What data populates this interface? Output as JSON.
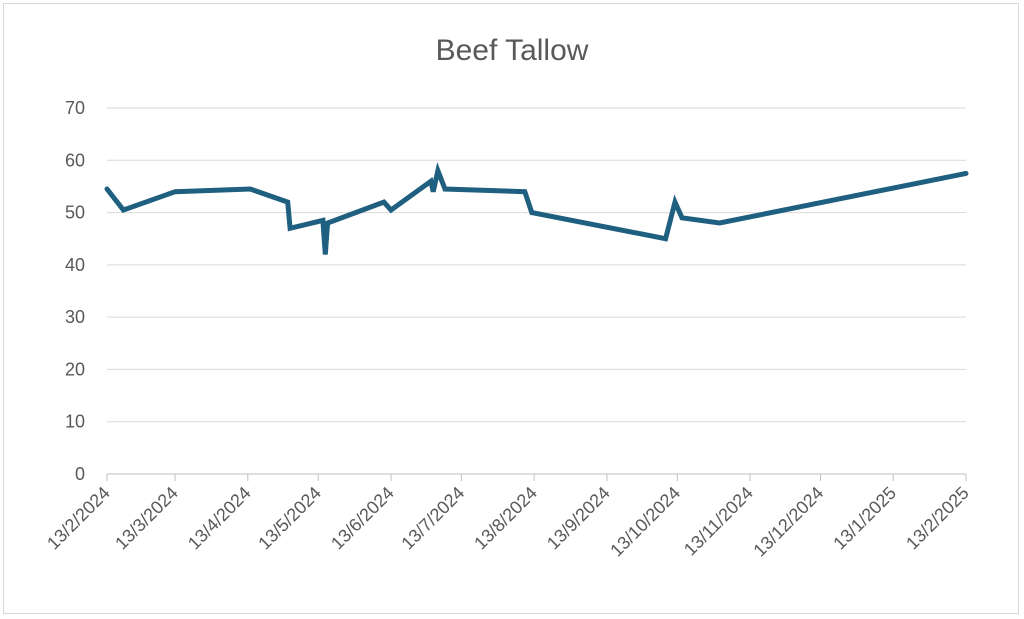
{
  "chart_data": {
    "type": "line",
    "title": "Beef Tallow",
    "xlabel": "",
    "ylabel": "",
    "x_type": "date",
    "xlim": [
      "2024-02-13",
      "2025-02-13"
    ],
    "ylim": [
      0,
      70
    ],
    "y_ticks": [
      0,
      10,
      20,
      30,
      40,
      50,
      60,
      70
    ],
    "x_tick_labels": [
      "13/2/2024",
      "13/3/2024",
      "13/4/2024",
      "13/5/2024",
      "13/6/2024",
      "13/7/2024",
      "13/8/2024",
      "13/9/2024",
      "13/10/2024",
      "13/11/2024",
      "13/12/2024",
      "13/1/2025",
      "13/2/2025"
    ],
    "x_tick_dates": [
      "2024-02-13",
      "2024-03-13",
      "2024-04-13",
      "2024-05-13",
      "2024-06-13",
      "2024-07-13",
      "2024-08-13",
      "2024-09-13",
      "2024-10-13",
      "2024-11-13",
      "2024-12-13",
      "2025-01-13",
      "2025-02-13"
    ],
    "grid": true,
    "legend": false,
    "series": [
      {
        "color": "#1f5f7f",
        "points": [
          {
            "x": "2024-02-13",
            "y": 54.5
          },
          {
            "x": "2024-02-20",
            "y": 50.5
          },
          {
            "x": "2024-03-13",
            "y": 54.0
          },
          {
            "x": "2024-04-14",
            "y": 54.5
          },
          {
            "x": "2024-04-30",
            "y": 52.0
          },
          {
            "x": "2024-05-01",
            "y": 47.0
          },
          {
            "x": "2024-05-15",
            "y": 48.5
          },
          {
            "x": "2024-05-16",
            "y": 42.0
          },
          {
            "x": "2024-05-17",
            "y": 48.0
          },
          {
            "x": "2024-06-10",
            "y": 52.0
          },
          {
            "x": "2024-06-13",
            "y": 50.5
          },
          {
            "x": "2024-06-30",
            "y": 56.0
          },
          {
            "x": "2024-07-01",
            "y": 54.0
          },
          {
            "x": "2024-07-03",
            "y": 58.0
          },
          {
            "x": "2024-07-06",
            "y": 54.5
          },
          {
            "x": "2024-08-09",
            "y": 54.0
          },
          {
            "x": "2024-08-12",
            "y": 50.0
          },
          {
            "x": "2024-10-08",
            "y": 45.0
          },
          {
            "x": "2024-10-12",
            "y": 52.0
          },
          {
            "x": "2024-10-15",
            "y": 49.0
          },
          {
            "x": "2024-10-31",
            "y": 48.0
          },
          {
            "x": "2025-02-13",
            "y": 57.5
          }
        ]
      }
    ]
  }
}
